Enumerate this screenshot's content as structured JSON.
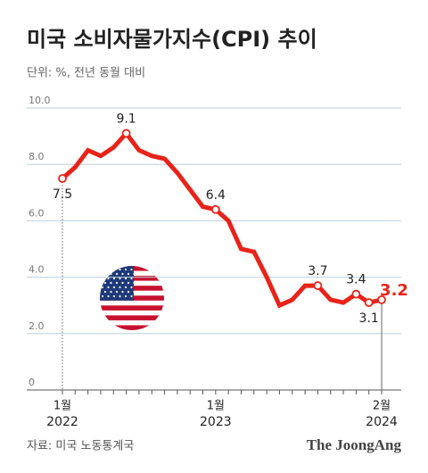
{
  "chart_data": {
    "type": "line",
    "title": "미국 소비자물가지수(CPI) 추이",
    "subtitle": "단위: %, 전년 동월 대비",
    "source": "자료: 미국 노동통계국",
    "brand": "The JoongAng",
    "categories": [
      "1월",
      null,
      null,
      null,
      null,
      null,
      null,
      null,
      null,
      null,
      null,
      null,
      "1월",
      null,
      null,
      null,
      null,
      null,
      null,
      null,
      null,
      null,
      null,
      null,
      null,
      "2월"
    ],
    "category_years": [
      "2022",
      null,
      null,
      null,
      null,
      null,
      null,
      null,
      null,
      null,
      null,
      null,
      "2023",
      null,
      null,
      null,
      null,
      null,
      null,
      null,
      null,
      null,
      null,
      null,
      null,
      "2024"
    ],
    "values": [
      7.5,
      7.9,
      8.5,
      8.3,
      8.6,
      9.1,
      8.5,
      8.3,
      8.2,
      7.7,
      7.1,
      6.5,
      6.4,
      6.0,
      5.0,
      4.9,
      4.0,
      3.0,
      3.2,
      3.7,
      3.7,
      3.2,
      3.1,
      3.4,
      3.1,
      3.2
    ],
    "value_labels": [
      "7.5",
      null,
      null,
      null,
      null,
      "9.1",
      null,
      null,
      null,
      null,
      null,
      null,
      "6.4",
      null,
      null,
      null,
      null,
      null,
      null,
      null,
      "3.7",
      null,
      null,
      "3.4",
      "3.1",
      "3.2"
    ],
    "color": "#e8231a",
    "highlight_color": "#e8231a",
    "ylim": [
      0,
      10
    ],
    "yticks": [
      0,
      {
        "value": 2,
        "label": "2.0"
      },
      {
        "value": 4,
        "label": "4.0"
      },
      {
        "value": 6,
        "label": "6.0"
      },
      {
        "value": 8,
        "label": "8.0"
      },
      {
        "value": 10,
        "label": "10.0"
      }
    ],
    "grid": true
  }
}
